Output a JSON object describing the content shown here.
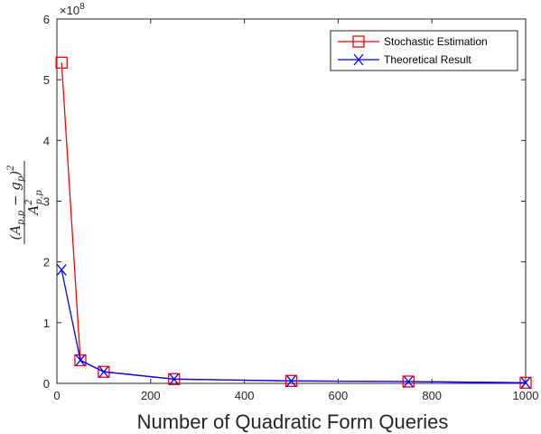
{
  "chart_data": {
    "type": "line",
    "xlabel": "Number of Quadratic Form Queries",
    "ylabel_numerator": "(A",
    "ylabel_num_sub": "p,p",
    "ylabel_num_mid": " − g",
    "ylabel_num_sub2": "p",
    "ylabel_num_end": ")",
    "ylabel_num_sup": "2",
    "ylabel_denominator": "A",
    "ylabel_den_sup": "2",
    "ylabel_den_sub": "p,p",
    "y_multiplier": "×10",
    "y_multiplier_exp": "8",
    "xlim": [
      0,
      1000
    ],
    "ylim": [
      0,
      6
    ],
    "x_ticks": [
      0,
      200,
      400,
      600,
      800,
      1000
    ],
    "y_ticks": [
      0,
      1,
      2,
      3,
      4,
      5,
      6
    ],
    "grid": false,
    "legend_position": "top-right",
    "series": [
      {
        "name": "Stochastic Estimation",
        "color": "#ff0000",
        "marker": "square",
        "x": [
          10,
          50,
          100,
          250,
          500,
          750,
          1000
        ],
        "y": [
          5.28,
          0.38,
          0.19,
          0.07,
          0.04,
          0.03,
          0.01
        ]
      },
      {
        "name": "Theoretical Result",
        "color": "#0000ff",
        "marker": "x",
        "x": [
          10,
          50,
          100,
          250,
          500,
          750,
          1000
        ],
        "y": [
          1.87,
          0.38,
          0.19,
          0.07,
          0.04,
          0.03,
          0.01
        ]
      }
    ]
  }
}
